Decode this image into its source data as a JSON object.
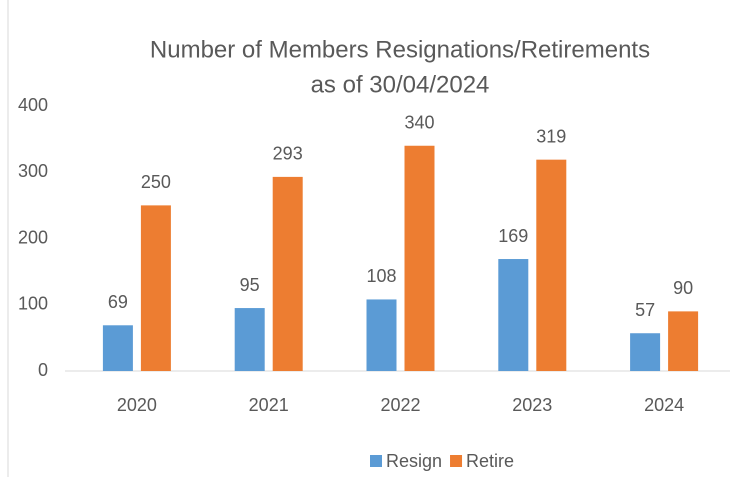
{
  "chart_data": {
    "type": "bar",
    "title": "Number of Members Resignations/Retirements",
    "subtitle": "as of 30/04/2024",
    "categories": [
      "2020",
      "2021",
      "2022",
      "2023",
      "2024"
    ],
    "series": [
      {
        "name": "Resign",
        "color": "#5b9bd5",
        "values": [
          69,
          95,
          108,
          169,
          57
        ]
      },
      {
        "name": "Retire",
        "color": "#ed7d31",
        "values": [
          250,
          293,
          340,
          319,
          90
        ]
      }
    ],
    "ylim": [
      0,
      400
    ],
    "yticks": [
      0,
      100,
      200,
      300,
      400
    ],
    "grid": false,
    "legend": "bottom"
  }
}
